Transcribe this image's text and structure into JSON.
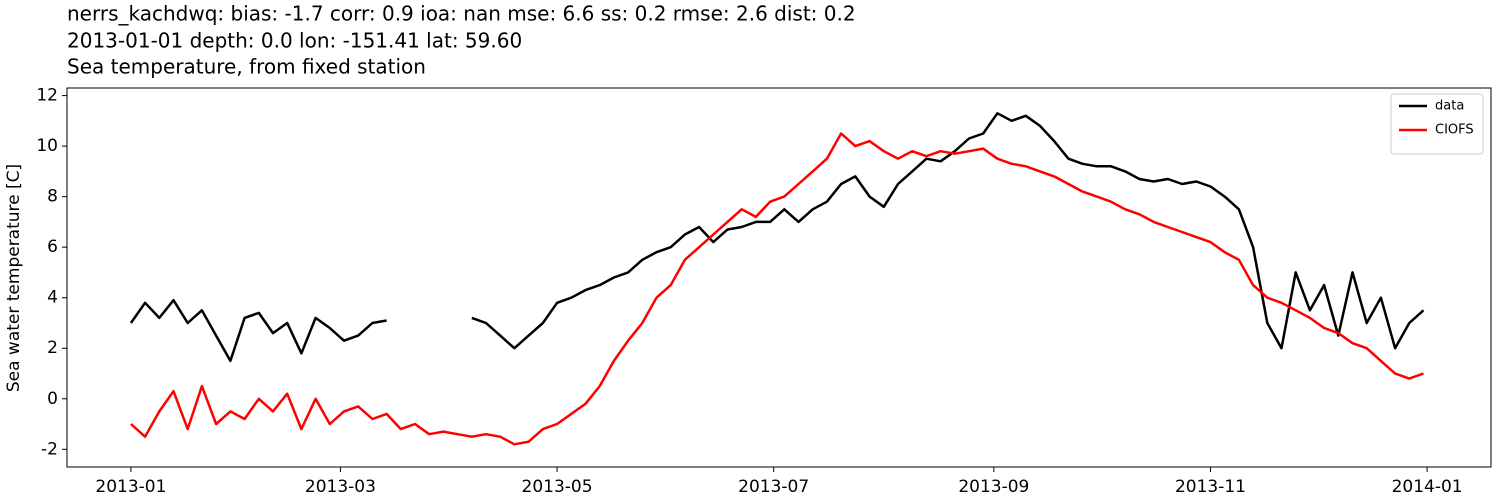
{
  "chart_data": {
    "type": "line",
    "title": [
      "nerrs_kachdwq: bias: -1.7  corr: 0.9  ioa: nan  mse: 6.6  ss: 0.2  rmse: 2.6  dist: 0.2",
      "2013-01-01 depth: 0.0 lon: -151.41 lat: 59.60",
      "Sea temperature, from fixed station"
    ],
    "ylabel": "Sea water temperature [C]",
    "x": [
      0,
      4,
      8,
      12,
      16,
      20,
      24,
      28,
      32,
      36,
      40,
      44,
      48,
      52,
      56,
      60,
      64,
      68,
      72,
      76,
      80,
      84,
      88,
      92,
      96,
      100,
      104,
      108,
      112,
      116,
      120,
      124,
      128,
      132,
      136,
      140,
      144,
      148,
      152,
      156,
      160,
      164,
      168,
      172,
      176,
      180,
      184,
      188,
      192,
      196,
      200,
      204,
      208,
      212,
      216,
      220,
      224,
      228,
      232,
      236,
      240,
      244,
      248,
      252,
      256,
      260,
      264,
      268,
      272,
      276,
      280,
      284,
      288,
      292,
      296,
      300,
      304,
      308,
      312,
      316,
      320,
      324,
      328,
      332,
      336,
      340,
      344,
      348,
      352,
      356,
      360,
      364
    ],
    "series": [
      {
        "name": "data",
        "color": "#000000",
        "values": [
          3.0,
          3.8,
          3.2,
          3.9,
          3.0,
          3.5,
          2.5,
          1.5,
          3.2,
          3.4,
          2.6,
          3.0,
          1.8,
          3.2,
          2.8,
          2.3,
          2.5,
          3.0,
          3.1,
          null,
          null,
          null,
          null,
          null,
          3.2,
          3.0,
          2.5,
          2.0,
          2.5,
          3.0,
          3.8,
          4.0,
          4.3,
          4.5,
          4.8,
          5.0,
          5.5,
          5.8,
          6.0,
          6.5,
          6.8,
          6.2,
          6.7,
          6.8,
          7.0,
          7.0,
          7.5,
          7.0,
          7.5,
          7.8,
          8.5,
          8.8,
          8.0,
          7.6,
          8.5,
          9.0,
          9.5,
          9.4,
          9.8,
          10.3,
          10.5,
          11.3,
          11.0,
          11.2,
          10.8,
          10.2,
          9.5,
          9.3,
          9.2,
          9.2,
          9.0,
          8.7,
          8.6,
          8.7,
          8.5,
          8.6,
          8.4,
          8.0,
          7.5,
          6.0,
          3.0,
          2.0,
          5.0,
          3.5,
          4.5,
          2.5,
          5.0,
          3.0,
          4.0,
          2.0,
          3.0,
          3.5
        ]
      },
      {
        "name": "CIOFS",
        "color": "#ff0000",
        "values": [
          -1.0,
          -1.5,
          -0.5,
          0.3,
          -1.2,
          0.5,
          -1.0,
          -0.5,
          -0.8,
          0.0,
          -0.5,
          0.2,
          -1.2,
          0.0,
          -1.0,
          -0.5,
          -0.3,
          -0.8,
          -0.6,
          -1.2,
          -1.0,
          -1.4,
          -1.3,
          -1.4,
          -1.5,
          -1.4,
          -1.5,
          -1.8,
          -1.7,
          -1.2,
          -1.0,
          -0.6,
          -0.2,
          0.5,
          1.5,
          2.3,
          3.0,
          4.0,
          4.5,
          5.5,
          6.0,
          6.5,
          7.0,
          7.5,
          7.2,
          7.8,
          8.0,
          8.5,
          9.0,
          9.5,
          10.5,
          10.0,
          10.2,
          9.8,
          9.5,
          9.8,
          9.6,
          9.8,
          9.7,
          9.8,
          9.9,
          9.5,
          9.3,
          9.2,
          9.0,
          8.8,
          8.5,
          8.2,
          8.0,
          7.8,
          7.5,
          7.3,
          7.0,
          6.8,
          6.6,
          6.4,
          6.2,
          5.8,
          5.5,
          4.5,
          4.0,
          3.8,
          3.5,
          3.2,
          2.8,
          2.6,
          2.2,
          2.0,
          1.5,
          1.0,
          0.8,
          1.0
        ]
      }
    ],
    "xlim": [
      -18,
      383
    ],
    "xticks": [
      {
        "value": 0,
        "label": "2013-01"
      },
      {
        "value": 59,
        "label": "2013-03"
      },
      {
        "value": 120,
        "label": "2013-05"
      },
      {
        "value": 181,
        "label": "2013-07"
      },
      {
        "value": 243,
        "label": "2013-09"
      },
      {
        "value": 304,
        "label": "2013-11"
      },
      {
        "value": 365,
        "label": "2014-01"
      }
    ],
    "ylim": [
      -2.7,
      12.3
    ],
    "yticks": [
      -2,
      0,
      2,
      4,
      6,
      8,
      10,
      12
    ],
    "legend": "upper right",
    "grid": false
  }
}
